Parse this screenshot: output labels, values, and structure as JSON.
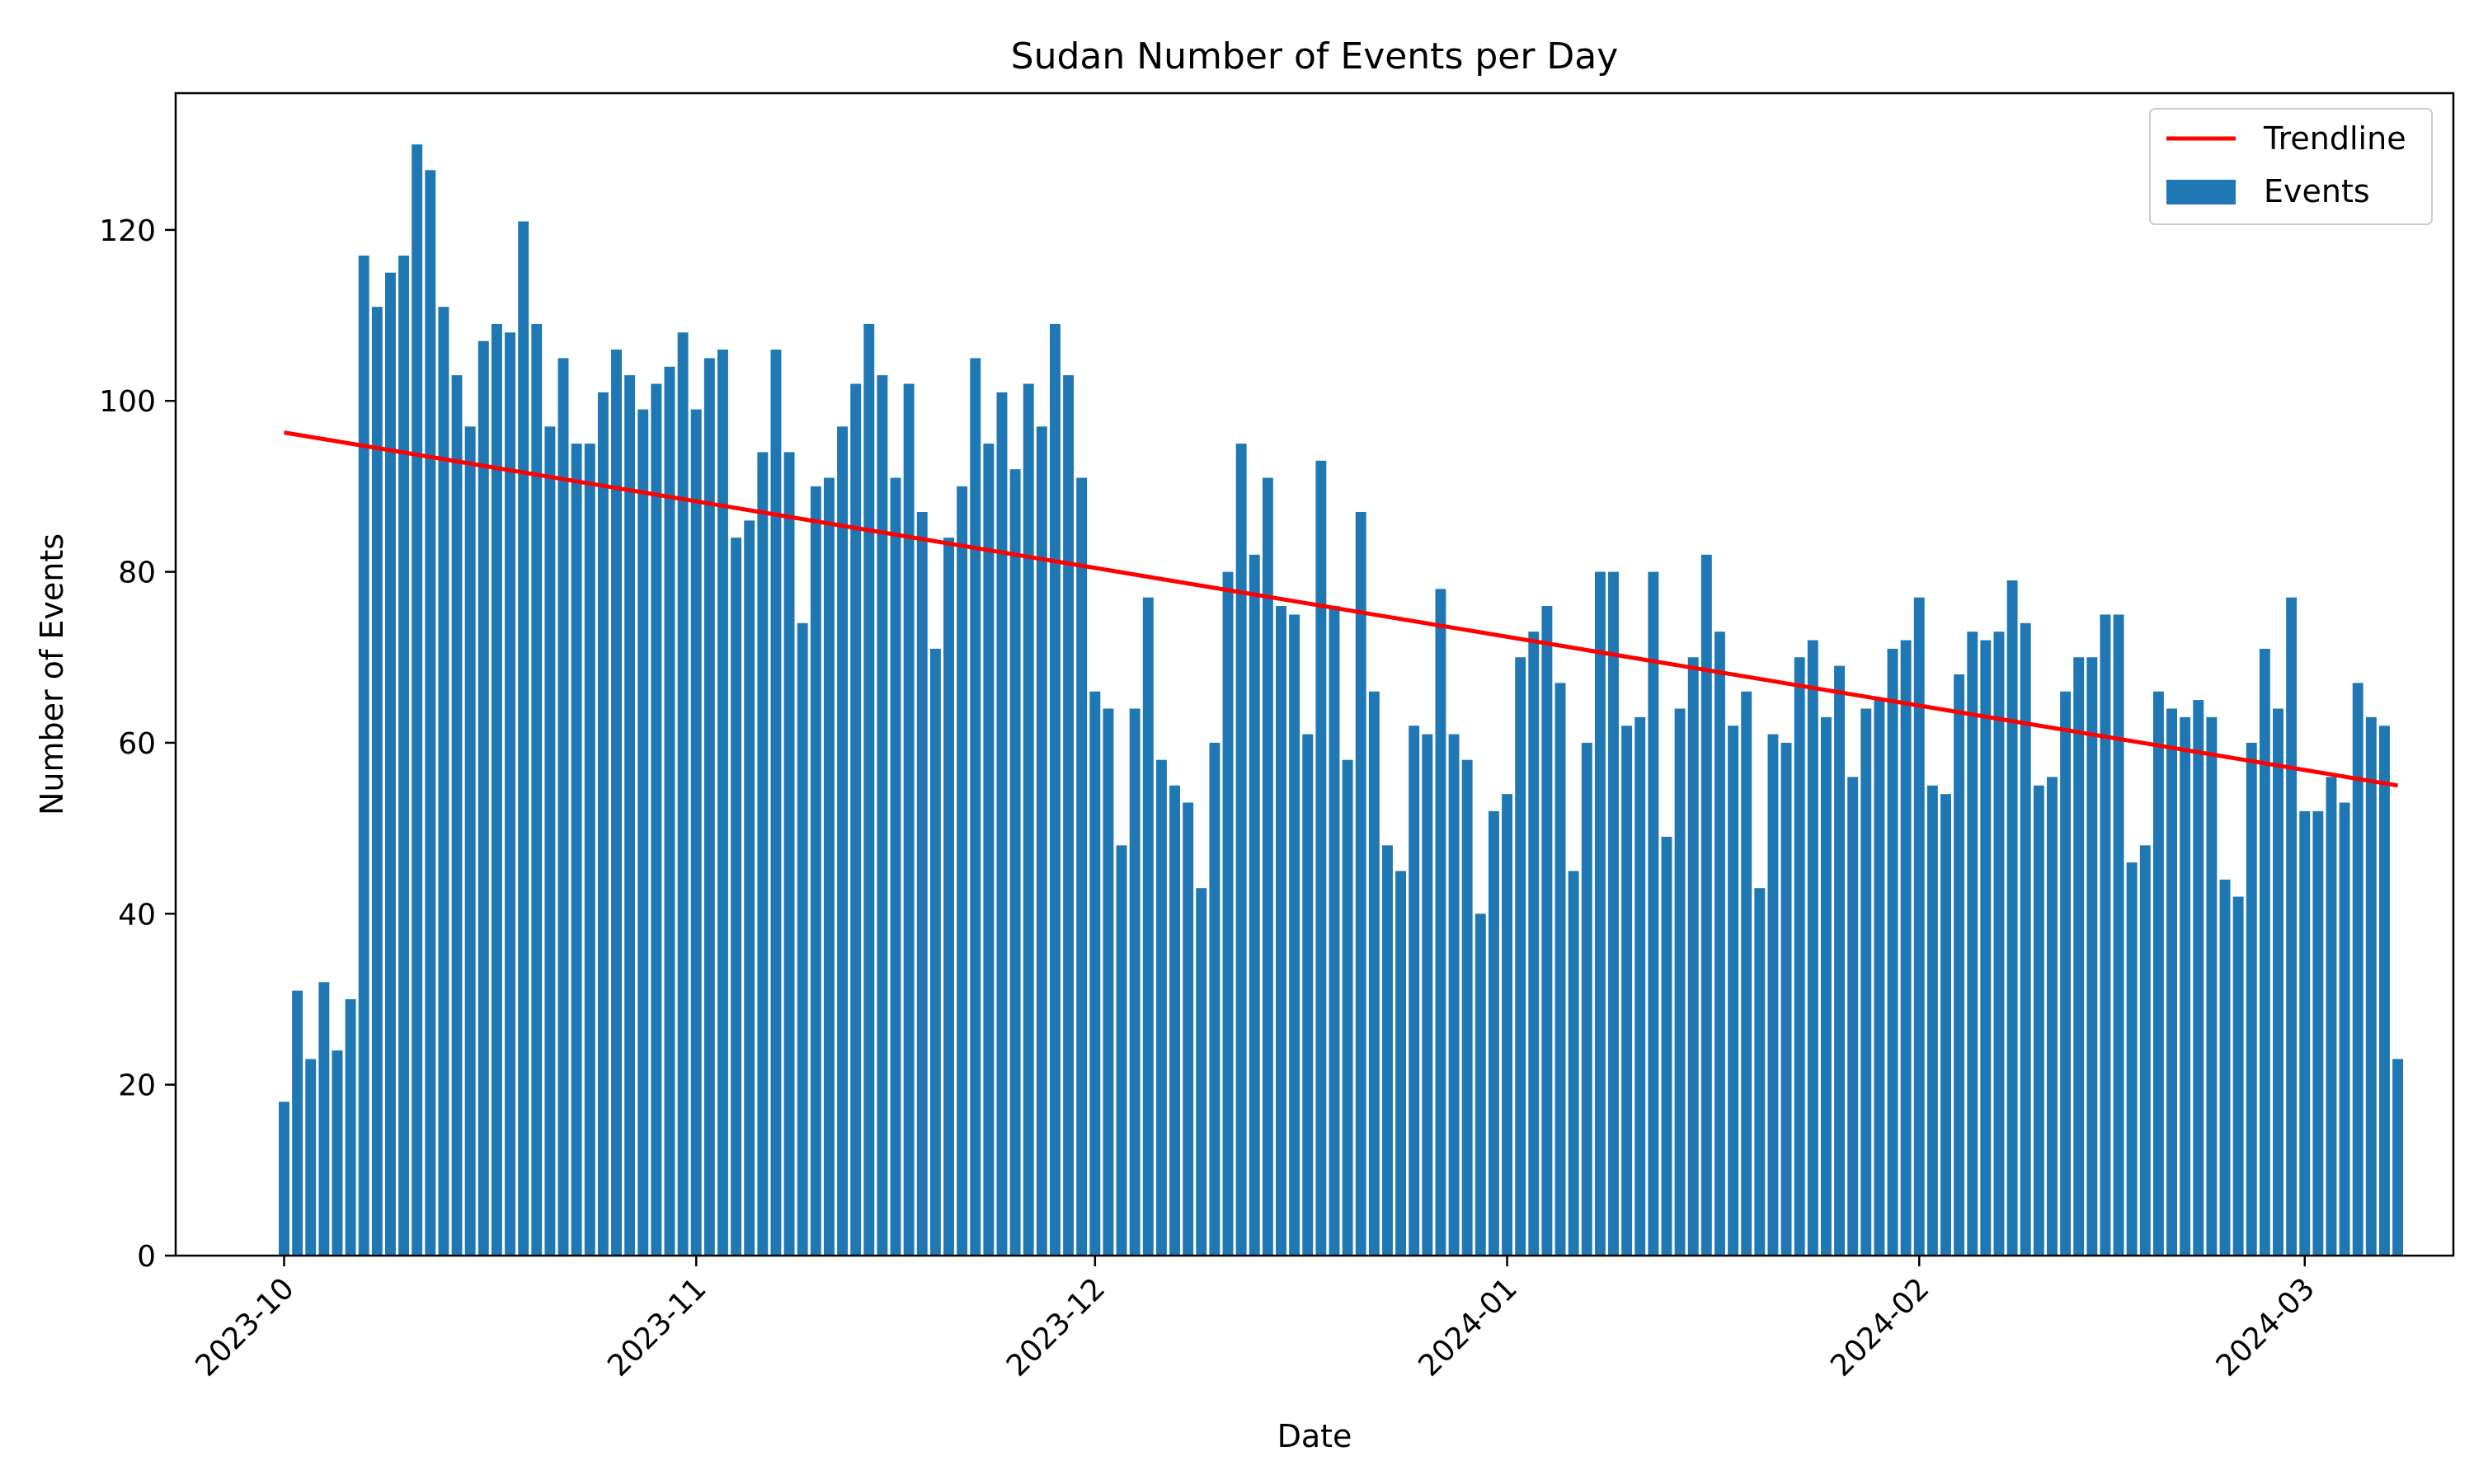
{
  "chart_data": {
    "type": "bar",
    "title": "Sudan Number of Events per Day",
    "xlabel": "Date",
    "ylabel": "Number of Events",
    "x_start": "2023-10-01",
    "x_ticks": [
      "2023-10",
      "2023-11",
      "2023-12",
      "2024-01",
      "2024-02",
      "2024-03"
    ],
    "x_tick_dates": [
      "2023-10-01",
      "2023-11-01",
      "2023-12-01",
      "2024-01-01",
      "2024-02-01",
      "2024-03-01"
    ],
    "y_ticks": [
      0,
      20,
      40,
      60,
      80,
      100,
      120
    ],
    "ylim": [
      0,
      136
    ],
    "grid": false,
    "legend_position": "top-right",
    "series": [
      {
        "name": "Events",
        "kind": "bar",
        "color": "#1f77b4",
        "values": [
          18,
          31,
          23,
          32,
          24,
          30,
          117,
          111,
          115,
          117,
          130,
          127,
          111,
          103,
          97,
          107,
          109,
          108,
          121,
          109,
          97,
          105,
          95,
          95,
          101,
          106,
          103,
          99,
          102,
          104,
          108,
          99,
          105,
          106,
          84,
          86,
          94,
          106,
          94,
          74,
          90,
          91,
          97,
          102,
          109,
          103,
          91,
          102,
          87,
          71,
          84,
          90,
          105,
          95,
          101,
          92,
          102,
          97,
          109,
          103,
          91,
          66,
          64,
          48,
          64,
          77,
          58,
          55,
          53,
          43,
          60,
          80,
          95,
          82,
          91,
          76,
          75,
          61,
          93,
          76,
          58,
          87,
          66,
          48,
          45,
          62,
          61,
          78,
          61,
          58,
          40,
          52,
          54,
          70,
          73,
          76,
          67,
          45,
          60,
          80,
          80,
          62,
          63,
          80,
          49,
          64,
          70,
          82,
          73,
          62,
          66,
          43,
          61,
          60,
          70,
          72,
          63,
          69,
          56,
          64,
          65,
          71,
          72,
          77,
          55,
          54,
          68,
          73,
          72,
          73,
          79,
          74,
          55,
          56,
          66,
          70,
          70,
          75,
          75,
          46,
          48,
          66,
          64,
          63,
          65,
          63,
          44,
          42,
          60,
          71,
          64,
          77,
          52,
          52,
          56,
          53,
          67,
          63,
          62,
          23
        ]
      },
      {
        "name": "Trendline",
        "kind": "line",
        "color": "#ff0000",
        "start": {
          "x": "2023-10-01",
          "y": 96.3
        },
        "end": {
          "x": "2024-03-08",
          "y": 55.0
        }
      }
    ]
  }
}
